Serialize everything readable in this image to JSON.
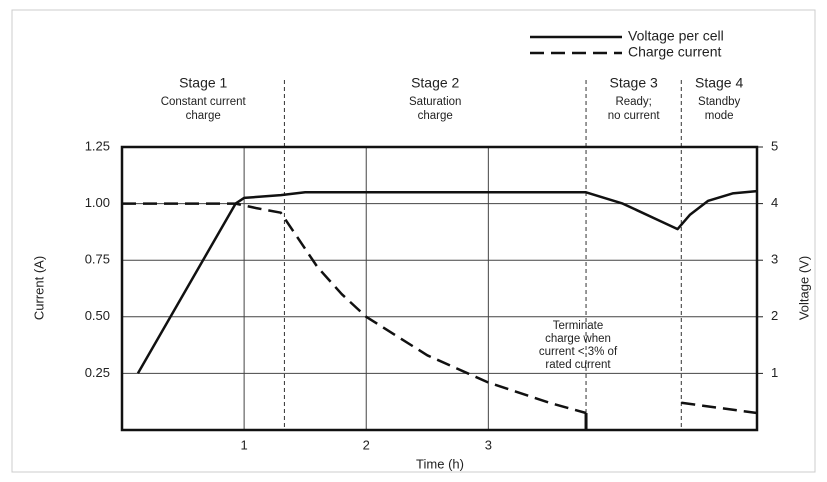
{
  "chart_data": {
    "type": "line",
    "xlabel": "Time (h)",
    "ylabel": "Current (A)",
    "y2label": "Voltage (V)",
    "xlim": [
      0,
      5.2
    ],
    "xticks": [
      1,
      2,
      3
    ],
    "ylim": [
      0,
      1.25
    ],
    "yticks": [
      1.25,
      {
        "value": 1.0,
        "label": "1.00"
      },
      0.75,
      {
        "value": 0.5,
        "label": "0.50"
      },
      0.25
    ],
    "y2lim": [
      0,
      5
    ],
    "y2ticks": [
      5,
      4,
      3,
      2,
      1
    ],
    "grid": true,
    "legend": "top-right",
    "stage_boundaries": [
      1.33,
      3.8,
      4.58
    ],
    "stages": [
      {
        "title": "Stage 1",
        "lines": [
          "Constant current",
          "charge"
        ]
      },
      {
        "title": "Stage 2",
        "lines": [
          "Saturation",
          "charge"
        ]
      },
      {
        "title": "Stage 3",
        "lines": [
          "Ready;",
          "no current"
        ]
      },
      {
        "title": "Stage 4",
        "lines": [
          "Standby",
          "mode"
        ]
      }
    ],
    "annotation": [
      "Terminate",
      "charge when",
      "current < 3% of",
      "rated current"
    ],
    "series": [
      {
        "name": "Voltage per cell",
        "color": "#111111",
        "style": "solid",
        "axis": "y2",
        "x": [
          0.13,
          0.93,
          1.0,
          1.3,
          1.5,
          3.8,
          4.1,
          4.4,
          4.55,
          4.65,
          4.8,
          5.0,
          5.2
        ],
        "values": [
          1.0,
          4.0,
          4.1,
          4.15,
          4.2,
          4.2,
          4.0,
          3.7,
          3.55,
          3.8,
          4.05,
          4.18,
          4.22
        ]
      },
      {
        "name": "Charge current",
        "color": "#111111",
        "style": "dashed",
        "x": [
          0,
          0.93,
          1.1,
          1.3,
          1.4,
          1.6,
          1.8,
          2.0,
          2.5,
          3.0,
          3.5,
          3.8,
          4.2,
          4.58,
          5.2
        ],
        "values": [
          1.0,
          1.0,
          0.98,
          0.96,
          0.88,
          0.72,
          0.6,
          0.5,
          0.33,
          0.21,
          0.12,
          0.075,
          null,
          0.12,
          0.075
        ]
      }
    ]
  }
}
